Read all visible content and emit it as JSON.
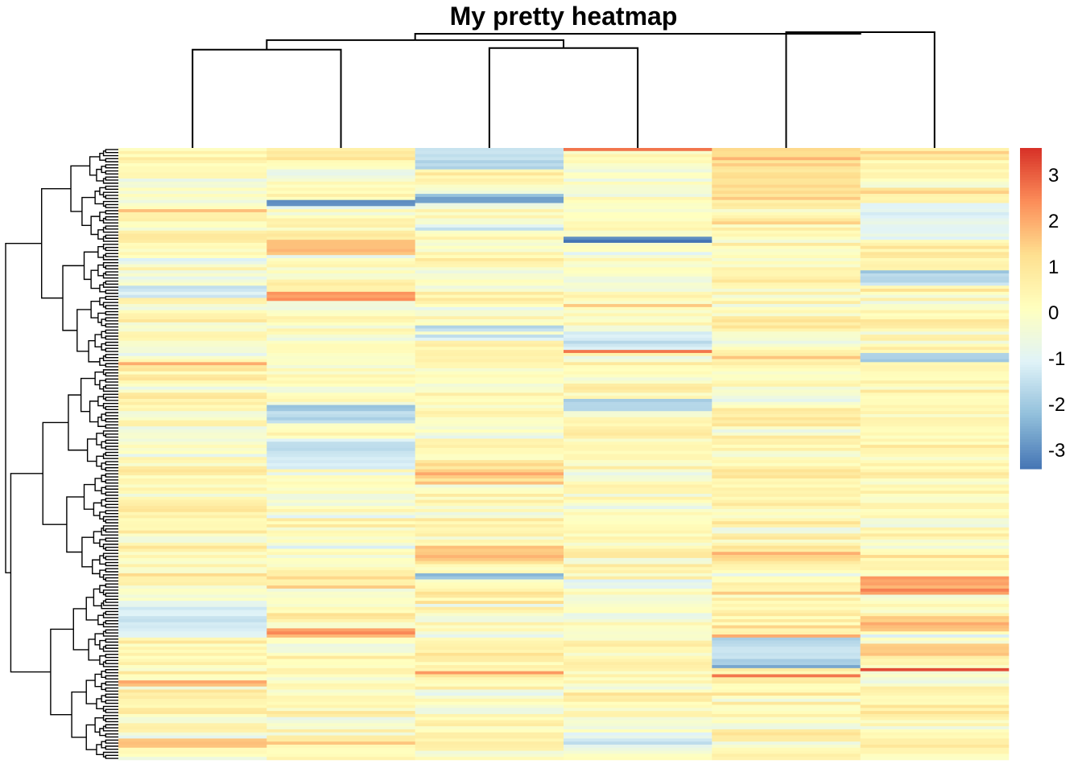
{
  "chart_data": {
    "type": "heatmap",
    "title": "My pretty heatmap",
    "n_rows": 200,
    "n_cols": 6,
    "column_order": [
      1,
      2,
      3,
      4,
      5,
      6
    ],
    "row_dendrogram": true,
    "col_dendrogram": {
      "merges": [
        {
          "left": 1,
          "right": 2,
          "height": 0.62
        },
        {
          "left": 3,
          "right": 4,
          "height": 0.63
        },
        {
          "left": 5,
          "right": 6,
          "height": 0.73
        },
        {
          "left": "1-2",
          "right": "3-4",
          "height": 0.68
        },
        {
          "left": "1-4",
          "right": "5-6",
          "height": 0.72
        }
      ]
    },
    "colorbar": {
      "min": -3.4,
      "max": 3.6,
      "ticks": [
        3,
        2,
        1,
        0,
        -1,
        -2,
        -3
      ],
      "colors": [
        "#4575b4",
        "#91bfdb",
        "#e0f3f8",
        "#ffffbf",
        "#fee090",
        "#fc8d59",
        "#d73027"
      ]
    },
    "column_profiles": [
      {
        "column": 1,
        "overall_mean": 0.2,
        "notes": "mostly light yellow; blue band ~rows 45-49 and 148-160; orange bands ~rows 20, 70, 175, 195"
      },
      {
        "column": 2,
        "overall_mean": 0.1,
        "notes": "blue band ~rows 17-18, 84-90, 95-105; orange ~rows 30-35, 47-50, 158-160"
      },
      {
        "column": 3,
        "overall_mean": 0.2,
        "notes": "blue top ~rows 0-7, 15-18; orange ~rows 102-110, 130-136"
      },
      {
        "column": 4,
        "overall_mean": 0.0,
        "notes": "red top row; blue band ~rows 29-30, 60-65, 83-86; orange ~row 66"
      },
      {
        "column": 5,
        "overall_mean": 0.4,
        "notes": "orange top ~rows 0-18; blue ~rows 160-170; red ~row 172"
      },
      {
        "column": 6,
        "overall_mean": 0.3,
        "notes": "blue ~rows 20-30, 40-45, 67-70; red ~rows 140-146, 170"
      }
    ]
  }
}
